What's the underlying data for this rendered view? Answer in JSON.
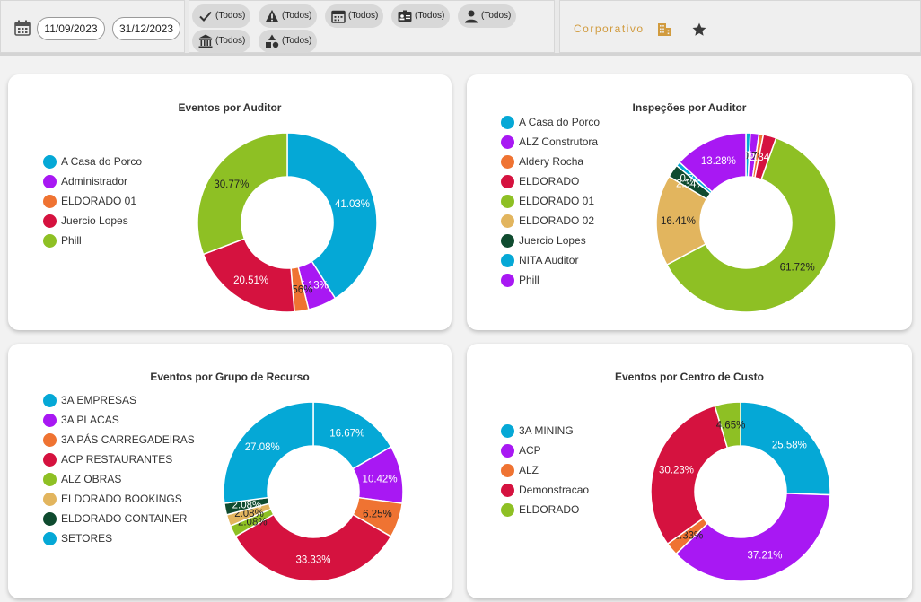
{
  "filters": {
    "date_start": "11/09/2023",
    "date_end": "31/12/2023",
    "items": [
      {
        "icon": "check-icon",
        "label": "(Todos)"
      },
      {
        "icon": "warning-icon",
        "label": "(Todos)"
      },
      {
        "icon": "calendar-icon",
        "label": "(Todos)"
      },
      {
        "icon": "id-card-icon",
        "label": "(Todos)"
      },
      {
        "icon": "person-icon",
        "label": "(Todos)"
      },
      {
        "icon": "bank-icon",
        "label": "(Todos)"
      },
      {
        "icon": "shapes-icon",
        "label": "(Todos)"
      }
    ]
  },
  "header": {
    "corporate_label": "Corporativo",
    "accent_color": "#d19b3e"
  },
  "chart_data": [
    {
      "type": "pie",
      "title": "Eventos por Auditor",
      "categories": [
        "A Casa do Porco",
        "Administrador",
        "ELDORADO 01",
        "Juercio Lopes",
        "Phill"
      ],
      "colors": [
        "#01b8aa",
        "#9b30ff",
        "#f07c30",
        "#d31545",
        "#8ec024"
      ],
      "legend_colors": [
        "#05a8d6",
        "#a818f3",
        "#ef7332",
        "#d5123f",
        "#8ec024"
      ],
      "values": [
        41.03,
        5.13,
        2.56,
        20.51,
        30.77
      ],
      "labels": [
        "41.03%",
        "5.13%",
        "2.56%",
        "20.51%",
        "30.77%"
      ]
    },
    {
      "type": "pie",
      "title": "Inspeções por Auditor",
      "categories": [
        "A Casa do Porco",
        "ALZ Construtora",
        "Aldery Rocha",
        "ELDORADO",
        "ELDORADO 01",
        "ELDORADO 02",
        "Juercio Lopes",
        "NITA Auditor",
        "Phill"
      ],
      "legend_colors": [
        "#05a8d6",
        "#a818f3",
        "#ef7332",
        "#d5123f",
        "#8ec024",
        "#e2b55e",
        "#0f4b2f",
        "#05a8d6",
        "#a818f3"
      ],
      "values": [
        0.78,
        1.56,
        0.78,
        2.34,
        61.72,
        16.41,
        2.34,
        0.78,
        13.28
      ],
      "labels": [
        "0.78%",
        "1.56%",
        "0.78%",
        "2.34%",
        "61.72%",
        "16.41%",
        "2.34%",
        "0.78%",
        "13.28%"
      ]
    },
    {
      "type": "pie",
      "title": "Eventos por Grupo de Recurso",
      "categories": [
        "3A EMPRESAS",
        "3A PLACAS",
        "3A PÁS CARREGADEIRAS",
        "ACP RESTAURANTES",
        "ALZ OBRAS",
        "ELDORADO BOOKINGS",
        "ELDORADO CONTAINER",
        "SETORES"
      ],
      "legend_colors": [
        "#05a8d6",
        "#a818f3",
        "#ef7332",
        "#d5123f",
        "#8ec024",
        "#e2b55e",
        "#0f4b2f",
        "#05a8d6"
      ],
      "values": [
        16.67,
        10.42,
        6.25,
        33.33,
        2.08,
        2.08,
        2.08,
        27.08
      ],
      "labels": [
        "16.67%",
        "10.42%",
        "6.25%",
        "33.33%",
        "2.08%",
        "2.08%",
        "2.08%",
        "27.08%"
      ]
    },
    {
      "type": "pie",
      "title": "Eventos por Centro de Custo",
      "categories": [
        "3A MINING",
        "ACP",
        "ALZ",
        "Demonstracao",
        "ELDORADO"
      ],
      "legend_colors": [
        "#05a8d6",
        "#a818f3",
        "#ef7332",
        "#d5123f",
        "#8ec024"
      ],
      "values": [
        25.58,
        37.21,
        2.33,
        30.23,
        4.65
      ],
      "labels": [
        "25.58%",
        "37.21%",
        "2.33%",
        "30.23%",
        "4.65%"
      ]
    }
  ]
}
